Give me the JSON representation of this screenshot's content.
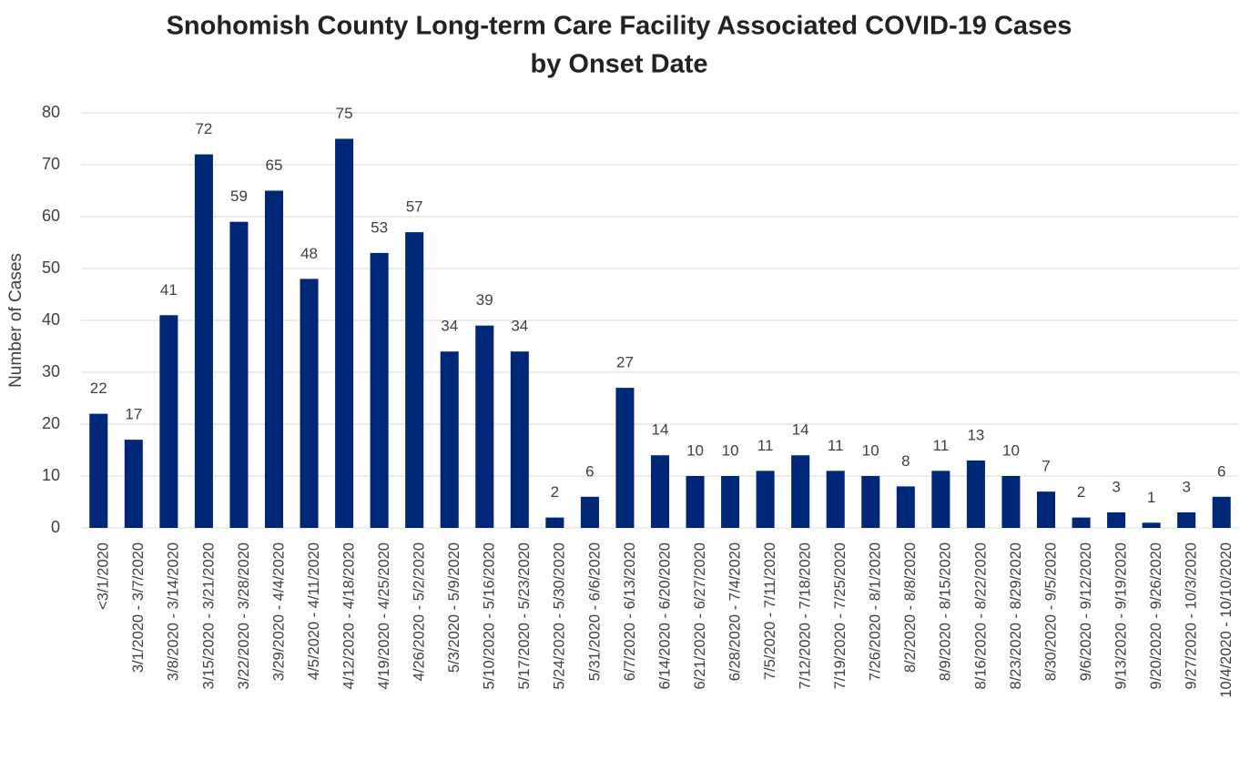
{
  "chart_data": {
    "type": "bar",
    "title": [
      "Snohomish County Long-term Care Facility Associated COVID-19 Cases",
      "by Onset Date"
    ],
    "y_label": "Number of Cases",
    "categories": [
      "<3/1/2020",
      "3/1/2020 - 3/7/2020",
      "3/8/2020 - 3/14/2020",
      "3/15/2020 - 3/21/2020",
      "3/22/2020 - 3/28/2020",
      "3/29/2020 - 4/4/2020",
      "4/5/2020 - 4/11/2020",
      "4/12/2020 - 4/18/2020",
      "4/19/2020 - 4/25/2020",
      "4/26/2020 - 5/2/2020",
      "5/3/2020 - 5/9/2020",
      "5/10/2020 - 5/16/2020",
      "5/17/2020 - 5/23/2020",
      "5/24/2020 - 5/30/2020",
      "5/31/2020 - 6/6/2020",
      "6/7/2020 - 6/13/2020",
      "6/14/2020 - 6/20/2020",
      "6/21/2020 - 6/27/2020",
      "6/28/2020 - 7/4/2020",
      "7/5/2020 - 7/11/2020",
      "7/12/2020 - 7/18/2020",
      "7/19/2020 - 7/25/2020",
      "7/26/2020 - 8/1/2020",
      "8/2/2020 - 8/8/2020",
      "8/9/2020 - 8/15/2020",
      "8/16/2020 - 8/22/2020",
      "8/23/2020 - 8/29/2020",
      "8/30/2020 - 9/5/2020",
      "9/6/2020 - 9/12/2020",
      "9/13/2020 - 9/19/2020",
      "9/20/2020 - 9/26/2020",
      "9/27/2020 - 10/3/2020",
      "10/4/2020 - 10/10/2020"
    ],
    "values": [
      22,
      17,
      41,
      72,
      59,
      65,
      48,
      75,
      53,
      57,
      34,
      39,
      34,
      2,
      6,
      27,
      14,
      10,
      10,
      11,
      14,
      11,
      10,
      8,
      11,
      13,
      10,
      7,
      2,
      3,
      1,
      3,
      6
    ],
    "color": "#002677",
    "ylim": [
      0,
      80
    ],
    "yticks": [
      0,
      10,
      20,
      30,
      40,
      50,
      60,
      70,
      80
    ],
    "grid": true
  }
}
